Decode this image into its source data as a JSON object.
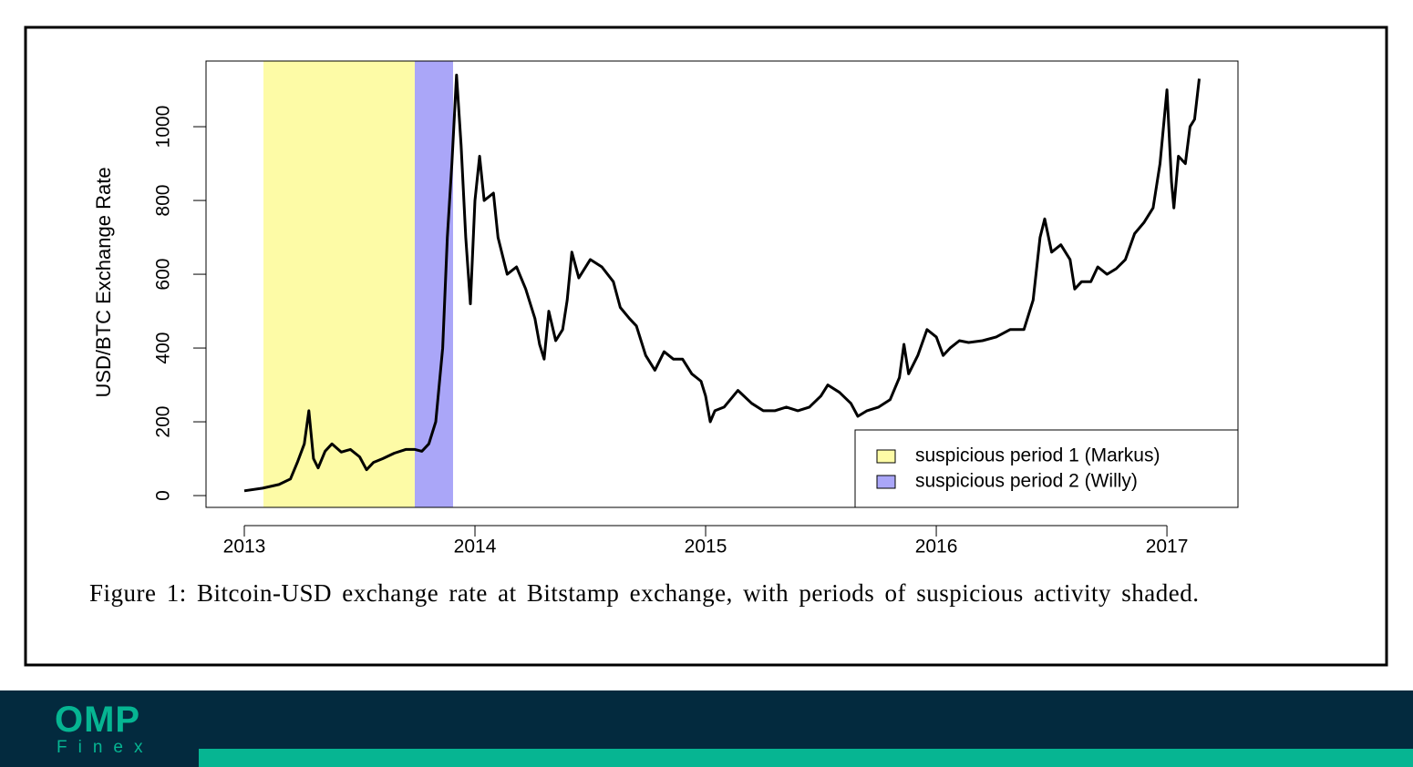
{
  "chart_data": {
    "type": "line",
    "y_label": "USD/BTC Exchange Rate",
    "caption": "Figure 1: Bitcoin-USD exchange rate at Bitstamp exchange, with periods of suspicious activity shaded.",
    "xlim": [
      2012.834,
      2017.308
    ],
    "xticks": [
      2013,
      2014,
      2015,
      2016,
      2017
    ],
    "ylim": [
      -32,
      1178
    ],
    "yticks": [
      0,
      200,
      400,
      600,
      800,
      1000
    ],
    "legend_position": "bottom-right",
    "shaded_regions": [
      {
        "name": "suspicious period 1 (Markus)",
        "color": "#fdfba6",
        "start": 2013.083,
        "end": 2013.739
      },
      {
        "name": "suspicious period 2 (Willy)",
        "color": "#aaa6f8",
        "start": 2013.739,
        "end": 2013.905
      }
    ],
    "series": [
      {
        "color": "#000000",
        "x": [
          2013.0,
          2013.08,
          2013.15,
          2013.2,
          2013.23,
          2013.26,
          2013.28,
          2013.3,
          2013.32,
          2013.35,
          2013.38,
          2013.42,
          2013.46,
          2013.5,
          2013.53,
          2013.56,
          2013.6,
          2013.65,
          2013.7,
          2013.74,
          2013.77,
          2013.8,
          2013.83,
          2013.86,
          2013.88,
          2013.9,
          2013.92,
          2013.94,
          2013.96,
          2013.98,
          2014.0,
          2014.02,
          2014.04,
          2014.08,
          2014.1,
          2014.14,
          2014.18,
          2014.22,
          2014.26,
          2014.28,
          2014.3,
          2014.32,
          2014.35,
          2014.38,
          2014.4,
          2014.42,
          2014.45,
          2014.5,
          2014.55,
          2014.6,
          2014.63,
          2014.67,
          2014.7,
          2014.74,
          2014.78,
          2014.82,
          2014.86,
          2014.9,
          2014.94,
          2014.98,
          2015.0,
          2015.02,
          2015.04,
          2015.08,
          2015.14,
          2015.2,
          2015.25,
          2015.3,
          2015.35,
          2015.4,
          2015.45,
          2015.5,
          2015.53,
          2015.58,
          2015.63,
          2015.66,
          2015.7,
          2015.75,
          2015.8,
          2015.84,
          2015.86,
          2015.88,
          2015.92,
          2015.96,
          2016.0,
          2016.03,
          2016.06,
          2016.1,
          2016.14,
          2016.2,
          2016.26,
          2016.32,
          2016.38,
          2016.42,
          2016.45,
          2016.47,
          2016.5,
          2016.54,
          2016.58,
          2016.6,
          2016.63,
          2016.67,
          2016.7,
          2016.74,
          2016.78,
          2016.82,
          2016.86,
          2016.9,
          2016.94,
          2016.97,
          2017.0,
          2017.02,
          2017.03,
          2017.05,
          2017.08,
          2017.1,
          2017.12,
          2017.14
        ],
        "values": [
          13,
          20,
          30,
          45,
          90,
          140,
          230,
          100,
          75,
          120,
          140,
          118,
          125,
          105,
          70,
          90,
          100,
          115,
          125,
          125,
          120,
          140,
          200,
          400,
          700,
          900,
          1140,
          950,
          700,
          520,
          800,
          920,
          800,
          820,
          700,
          600,
          620,
          560,
          480,
          410,
          370,
          500,
          420,
          450,
          530,
          660,
          590,
          640,
          620,
          580,
          510,
          480,
          460,
          380,
          340,
          390,
          370,
          370,
          330,
          310,
          270,
          200,
          230,
          240,
          285,
          250,
          230,
          230,
          240,
          230,
          240,
          270,
          300,
          280,
          250,
          215,
          230,
          240,
          260,
          320,
          410,
          330,
          380,
          450,
          430,
          380,
          400,
          420,
          415,
          420,
          430,
          450,
          450,
          530,
          700,
          750,
          660,
          680,
          640,
          560,
          580,
          580,
          620,
          600,
          615,
          640,
          710,
          740,
          780,
          900,
          1100,
          850,
          780,
          920,
          900,
          1000,
          1020,
          1130
        ]
      }
    ]
  },
  "footer": {
    "logo": "OMP",
    "logo_sub": "Finex"
  }
}
